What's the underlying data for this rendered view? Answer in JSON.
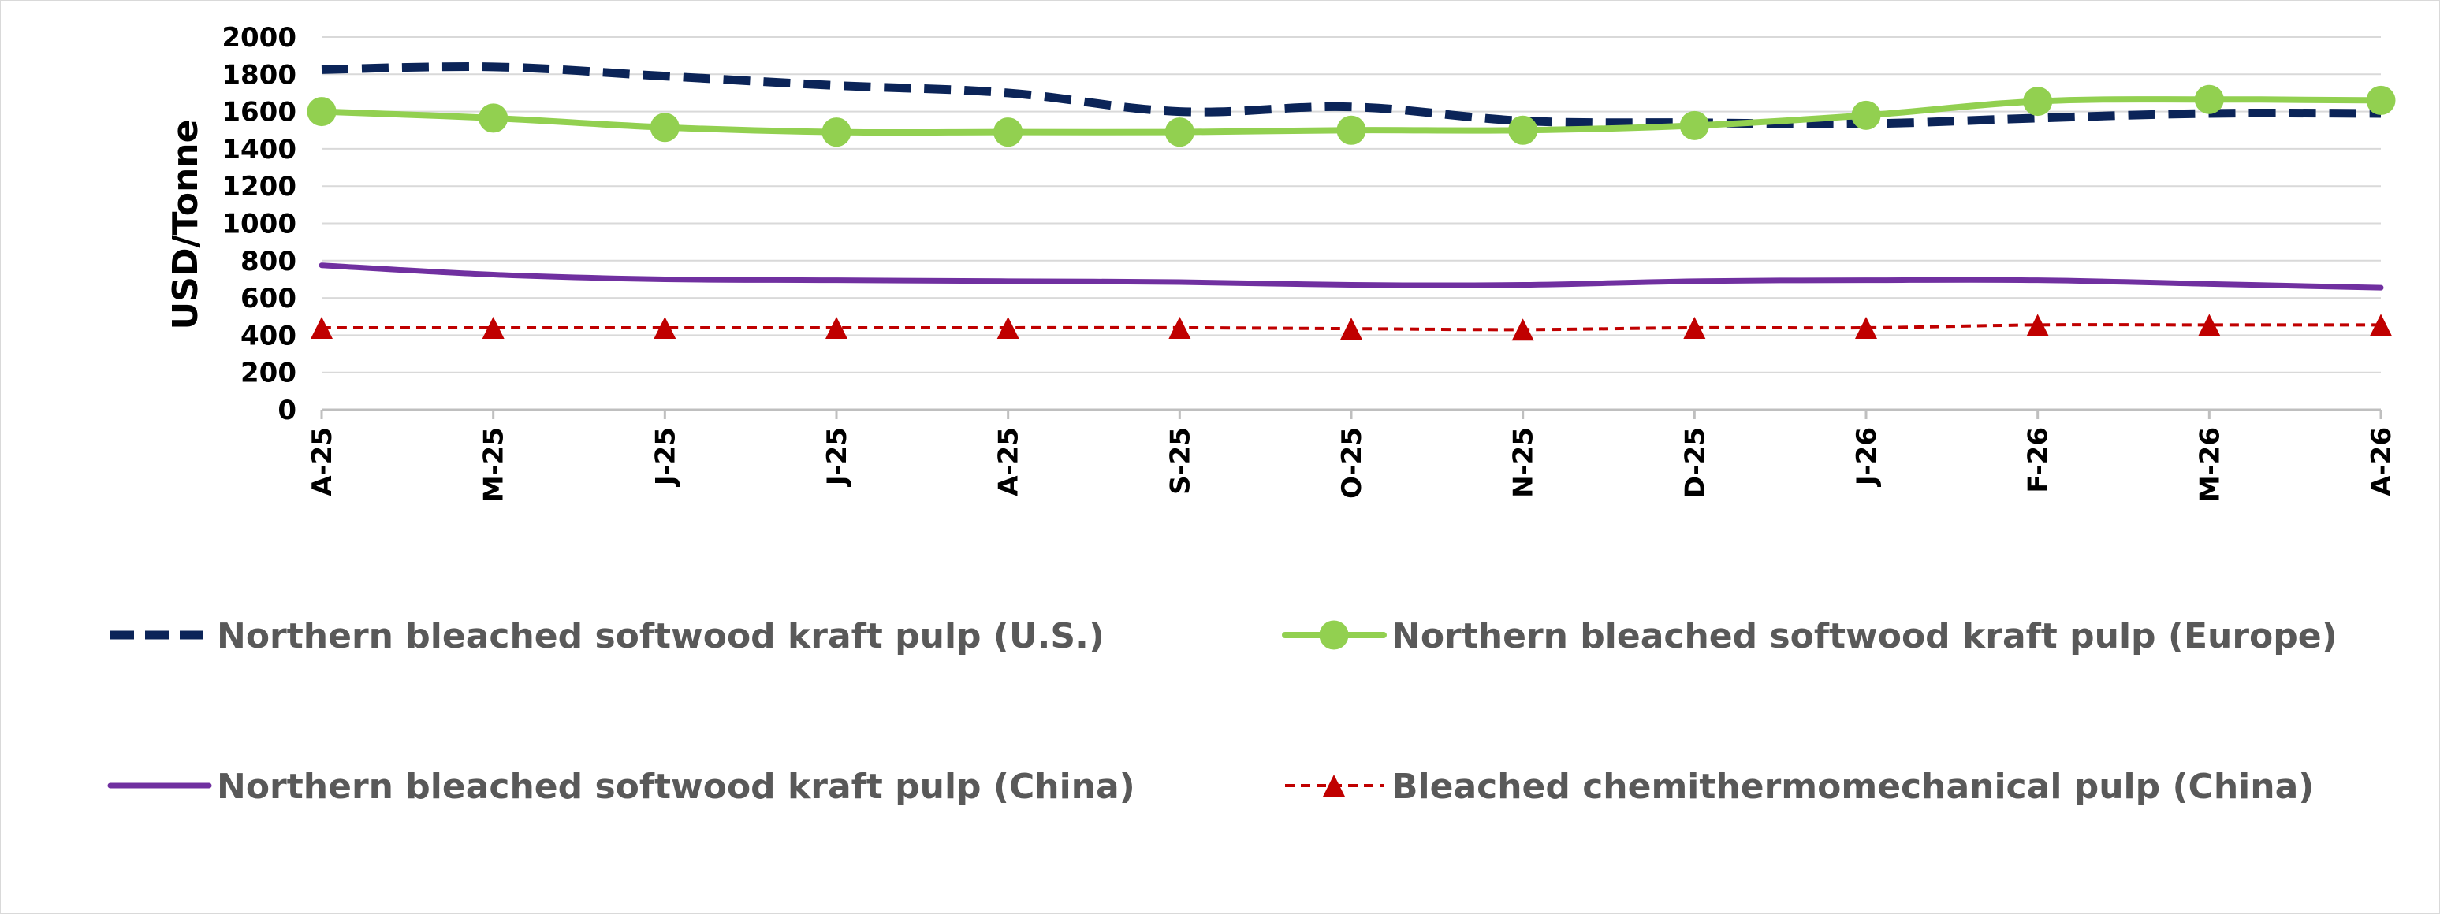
{
  "chart_data": {
    "type": "line",
    "title": "",
    "xlabel": "",
    "ylabel": "USD/Tonne",
    "ylim": [
      0,
      2000
    ],
    "yticks": [
      "2000",
      "1800",
      "1600",
      "1400",
      "1200",
      "1000",
      "800",
      "600",
      "400",
      "200",
      "0"
    ],
    "grid": true,
    "legend_position": "bottom",
    "categories": [
      "A-25",
      "M-25",
      "J-25",
      "J-25",
      "A-25",
      "S-25",
      "O-25",
      "N-25",
      "D-25",
      "J-26",
      "F-26",
      "M-26",
      "A-26"
    ],
    "series": [
      {
        "name": "Northern bleached softwood kraft pulp (U.S.)",
        "color": "#0b2458",
        "style": "dashed",
        "marker": "none",
        "values": [
          1825,
          1840,
          1790,
          1740,
          1700,
          1600,
          1625,
          1550,
          1540,
          1535,
          1565,
          1590,
          1590
        ]
      },
      {
        "name": "Northern bleached softwood kraft pulp (Europe)",
        "color": "#92d050",
        "style": "solid",
        "marker": "circle",
        "values": [
          1600,
          1565,
          1515,
          1490,
          1490,
          1490,
          1500,
          1500,
          1525,
          1580,
          1655,
          1665,
          1660
        ]
      },
      {
        "name": "Northern bleached softwood kraft pulp (China)",
        "color": "#7030a0",
        "style": "solid",
        "marker": "none",
        "values": [
          775,
          725,
          700,
          695,
          690,
          685,
          670,
          670,
          690,
          695,
          695,
          675,
          655
        ]
      },
      {
        "name": "Bleached chemithermomechanical pulp (China)",
        "color": "#c00000",
        "style": "dotted",
        "marker": "triangle",
        "values": [
          440,
          440,
          440,
          440,
          440,
          440,
          435,
          430,
          440,
          440,
          455,
          455,
          455
        ]
      }
    ]
  }
}
